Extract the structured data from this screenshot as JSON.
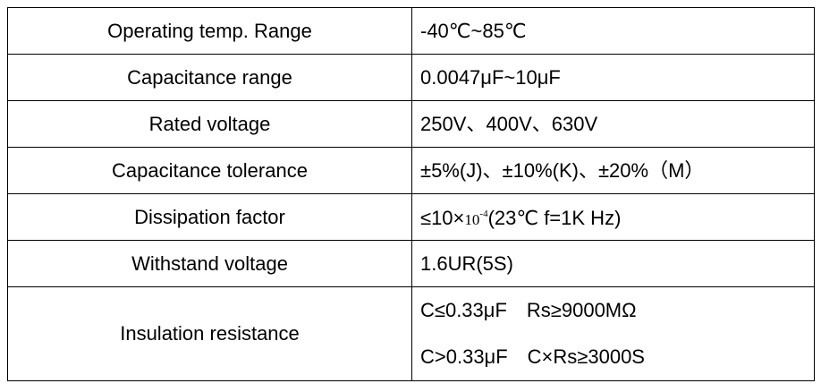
{
  "table": {
    "rows": [
      {
        "parameter": "Operating temp. Range",
        "value": "-40℃~85℃"
      },
      {
        "parameter": "Capacitance range",
        "value": "0.0047μF~10μF"
      },
      {
        "parameter": "Rated voltage",
        "value": "250V、400V、630V"
      },
      {
        "parameter": "Capacitance tolerance",
        "value": "±5%(J)、±10%(K)、±20%（M）"
      },
      {
        "parameter": "Dissipation factor",
        "value_prefix": "≤10×",
        "value_base": "10",
        "value_exponent": "-4",
        "value_suffix": "(23℃  f=1K Hz)"
      },
      {
        "parameter": "Withstand voltage",
        "value": "1.6UR(5S)"
      },
      {
        "parameter": "Insulation resistance",
        "lines": [
          {
            "condition": "C≤0.33μF",
            "requirement": "Rs≥9000MΩ"
          },
          {
            "condition": "C>0.33μF",
            "requirement": "C×Rs≥3000S"
          }
        ]
      }
    ]
  }
}
